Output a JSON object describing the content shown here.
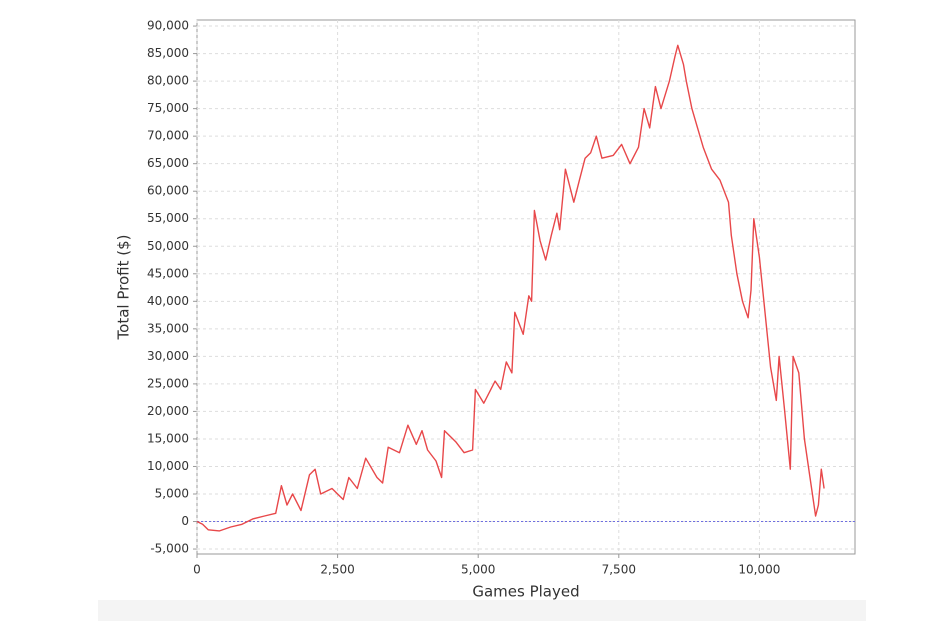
{
  "chart_data": {
    "type": "line",
    "x_label": "Games Played",
    "y_label": "Total Profit ($)",
    "color": "#e8484a",
    "grid": true,
    "zero_line": true,
    "xlim": [
      0,
      11700
    ],
    "ylim": [
      -5900,
      91100
    ],
    "xticks": [
      0,
      {
        "value": 2500,
        "label": "2,500"
      },
      {
        "value": 5000,
        "label": "5,000"
      },
      {
        "value": 7500,
        "label": "7,500"
      },
      {
        "value": 10000,
        "label": "10,000"
      }
    ],
    "yticks": [
      {
        "value": -5000,
        "label": "-5,000"
      },
      0,
      {
        "value": 5000,
        "label": "5,000"
      },
      {
        "value": 10000,
        "label": "10,000"
      },
      {
        "value": 15000,
        "label": "15,000"
      },
      {
        "value": 20000,
        "label": "20,000"
      },
      {
        "value": 25000,
        "label": "25,000"
      },
      {
        "value": 30000,
        "label": "30,000"
      },
      {
        "value": 35000,
        "label": "35,000"
      },
      {
        "value": 40000,
        "label": "40,000"
      },
      {
        "value": 45000,
        "label": "45,000"
      },
      {
        "value": 50000,
        "label": "50,000"
      },
      {
        "value": 55000,
        "label": "55,000"
      },
      {
        "value": 60000,
        "label": "60,000"
      },
      {
        "value": 65000,
        "label": "65,000"
      },
      {
        "value": 70000,
        "label": "70,000"
      },
      {
        "value": 75000,
        "label": "75,000"
      },
      {
        "value": 80000,
        "label": "80,000"
      },
      {
        "value": 85000,
        "label": "85,000"
      },
      {
        "value": 90000,
        "label": "90,000"
      }
    ],
    "x": [
      0,
      100,
      200,
      400,
      600,
      800,
      1000,
      1200,
      1400,
      1500,
      1600,
      1700,
      1850,
      2000,
      2100,
      2200,
      2400,
      2600,
      2700,
      2850,
      3000,
      3200,
      3300,
      3400,
      3600,
      3750,
      3900,
      4000,
      4100,
      4250,
      4350,
      4400,
      4600,
      4750,
      4900,
      4950,
      5100,
      5300,
      5400,
      5500,
      5600,
      5650,
      5800,
      5900,
      5950,
      6000,
      6100,
      6200,
      6300,
      6400,
      6450,
      6550,
      6700,
      6800,
      6900,
      7000,
      7100,
      7200,
      7400,
      7550,
      7700,
      7850,
      7950,
      8050,
      8150,
      8250,
      8400,
      8500,
      8550,
      8650,
      8700,
      8800,
      9000,
      9150,
      9300,
      9450,
      9500,
      9600,
      9700,
      9800,
      9850,
      9900,
      10000,
      10100,
      10200,
      10300,
      10350,
      10450,
      10550,
      10600,
      10700,
      10800,
      10900,
      11000,
      11050,
      11100,
      11150
    ],
    "values": [
      0,
      -500,
      -1500,
      -1700,
      -1000,
      -500,
      500,
      1000,
      1500,
      6500,
      3000,
      5000,
      2000,
      8500,
      9500,
      5000,
      6000,
      4000,
      8000,
      6000,
      11500,
      8000,
      7000,
      13500,
      12500,
      17500,
      14000,
      16500,
      13000,
      11000,
      8000,
      16500,
      14500,
      12500,
      13000,
      24000,
      21500,
      25500,
      24000,
      29000,
      27000,
      38000,
      34000,
      41000,
      40000,
      56500,
      51000,
      47500,
      52000,
      56000,
      53000,
      64000,
      58000,
      62000,
      66000,
      67000,
      70000,
      66000,
      66500,
      68500,
      65000,
      68000,
      75000,
      71500,
      79000,
      75000,
      80000,
      84500,
      86500,
      83000,
      80000,
      75000,
      68000,
      64000,
      62000,
      58000,
      52000,
      45000,
      40000,
      37000,
      42000,
      55000,
      48000,
      38000,
      28000,
      22000,
      30000,
      20000,
      9500,
      30000,
      27000,
      15000,
      8000,
      1000,
      3000,
      9500,
      6000
    ]
  }
}
